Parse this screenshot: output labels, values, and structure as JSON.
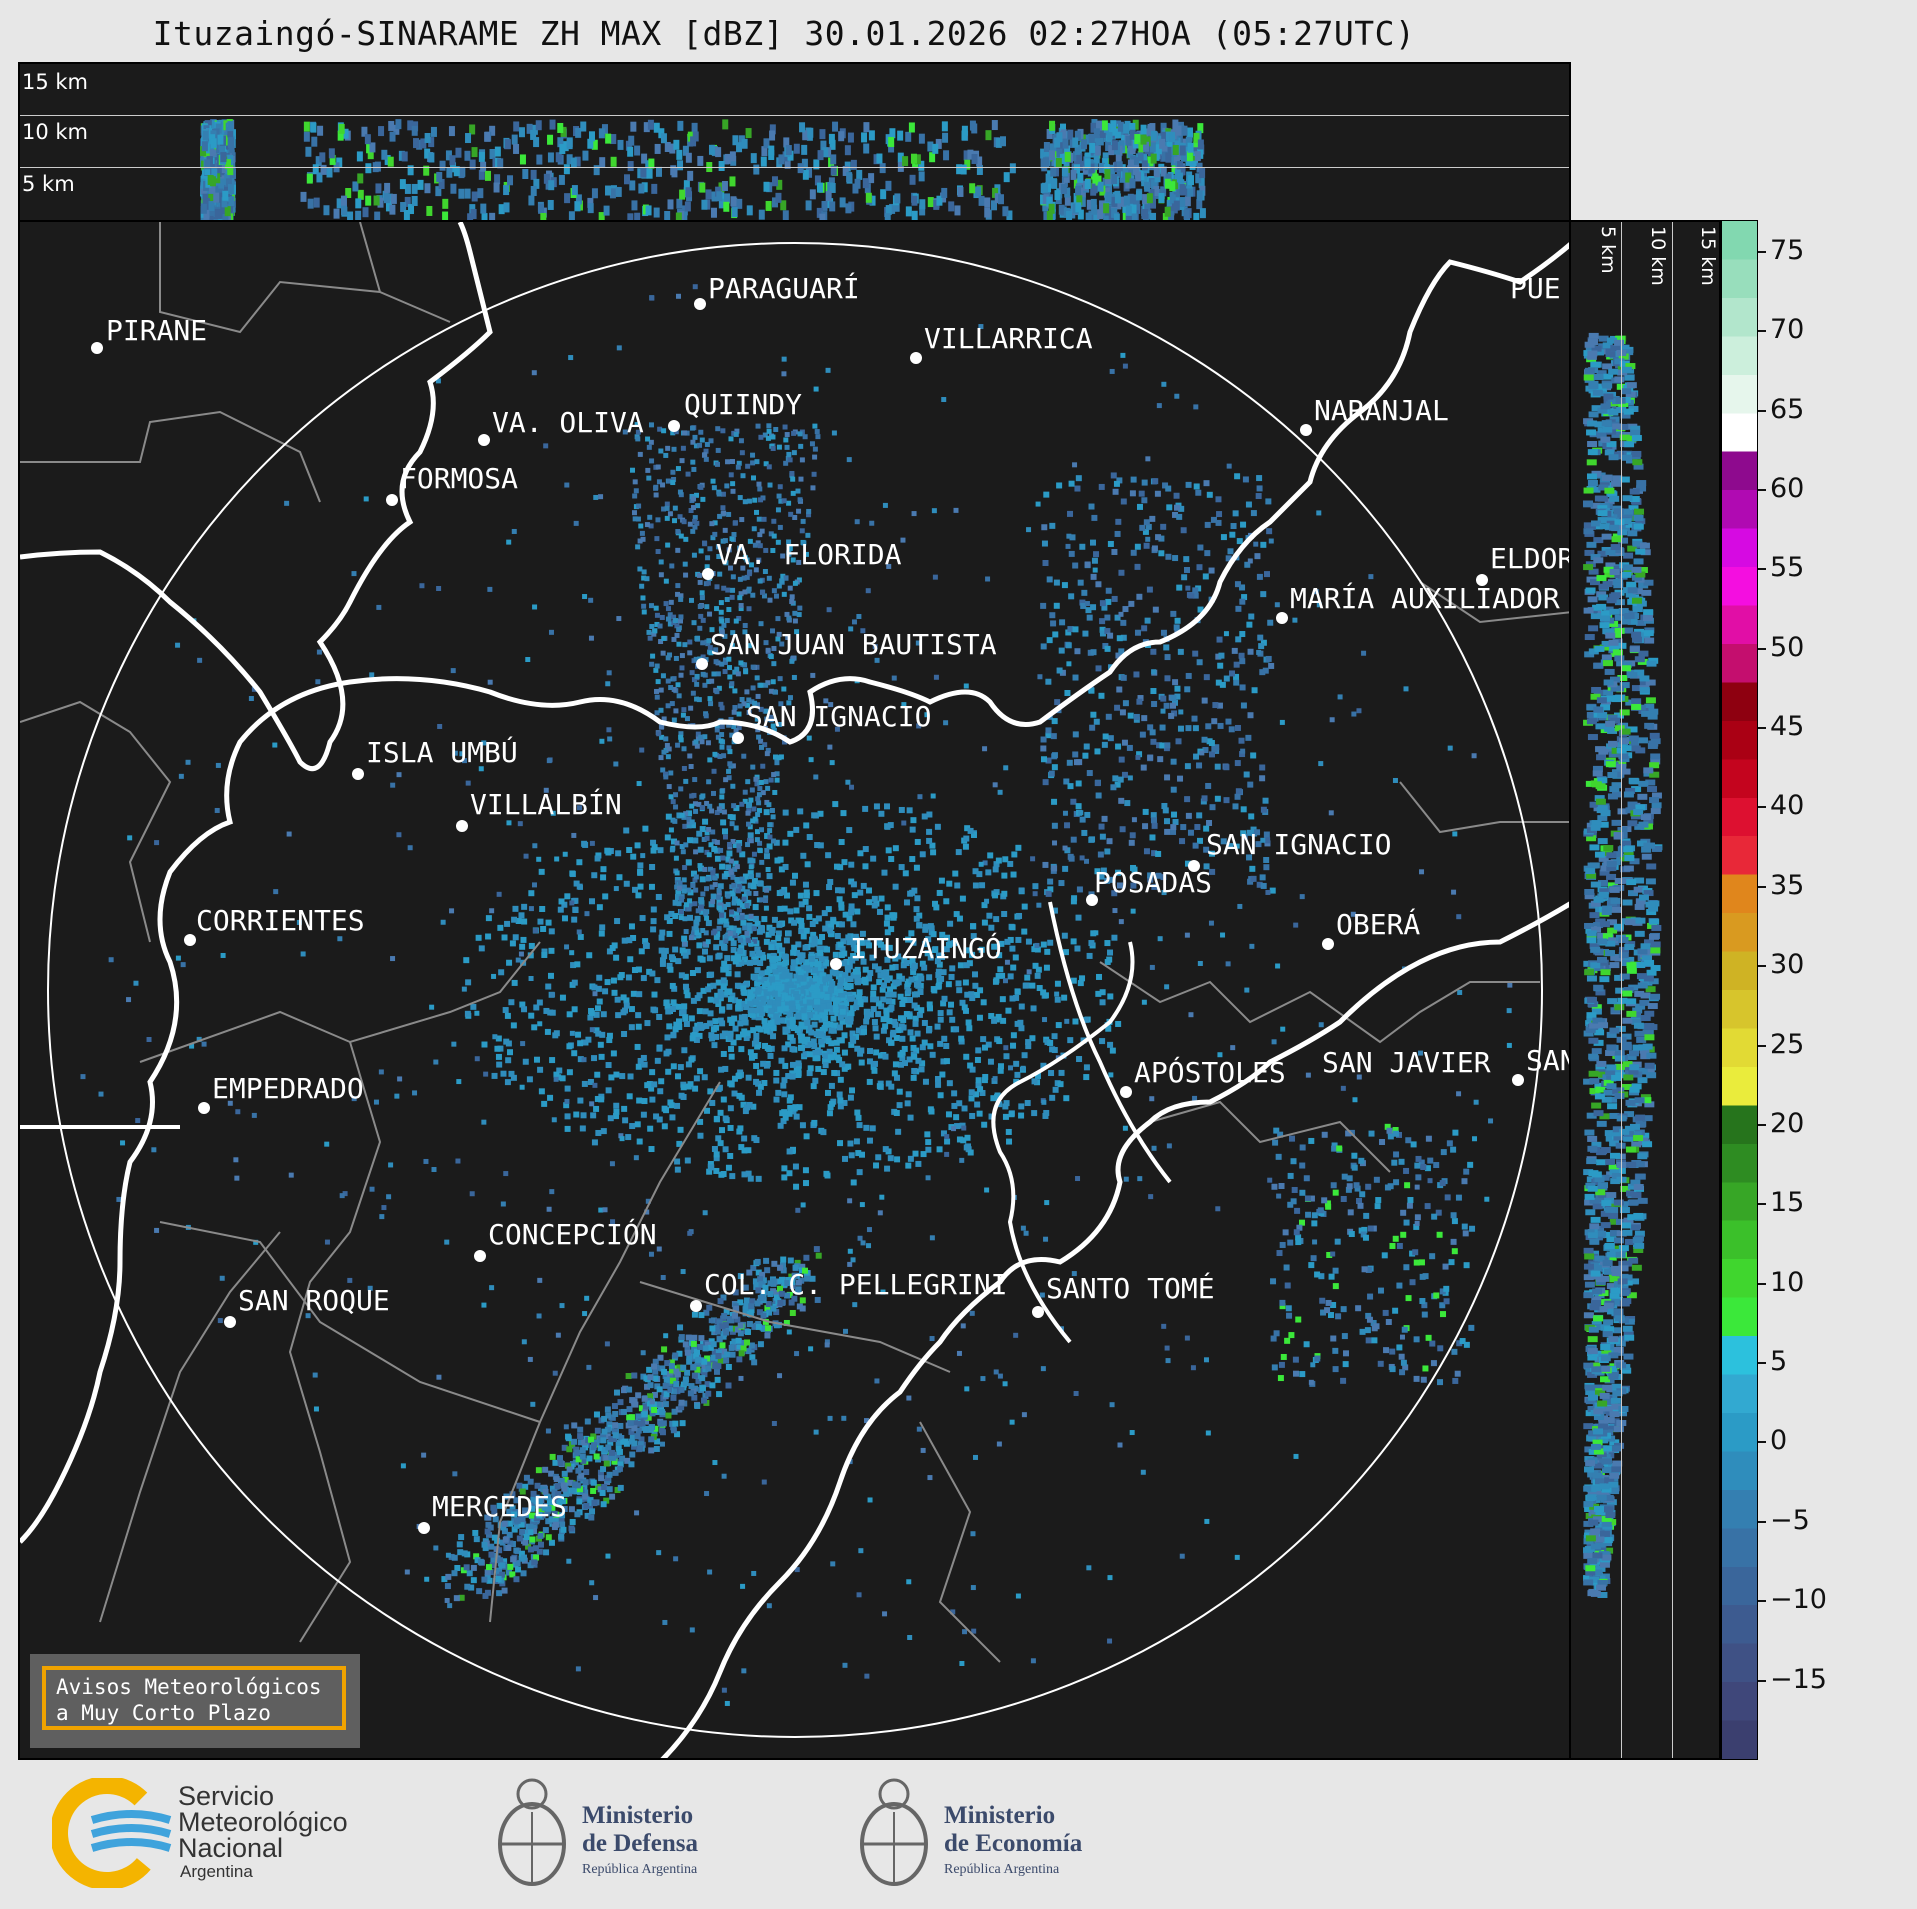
{
  "title": "Ituzaingó-SINARAME ZH MAX [dBZ] 30.01.2026 02:27HOA (05:27UTC)",
  "height_labels": [
    "15 km",
    "10 km",
    "5 km"
  ],
  "cities": [
    {
      "name": "PIRANE"
    },
    {
      "name": "PARAGUARÍ"
    },
    {
      "name": "VILLARRICA"
    },
    {
      "name": "QUIINDY"
    },
    {
      "name": "VA. OLIVA"
    },
    {
      "name": "FORMOSA"
    },
    {
      "name": "NARANJAL"
    },
    {
      "name": "VA. FLORIDA"
    },
    {
      "name": "ELDOR"
    },
    {
      "name": "MARÍA AUXILIADOR"
    },
    {
      "name": "SAN JUAN BAUTISTA"
    },
    {
      "name": "SAN IGNACIO"
    },
    {
      "name": "ISLA UMBÚ"
    },
    {
      "name": "VILLALBÍN"
    },
    {
      "name": "SAN IGNACIO"
    },
    {
      "name": "POSADAS"
    },
    {
      "name": "CORRIENTES"
    },
    {
      "name": "ITUZAINGÓ"
    },
    {
      "name": "OBERÁ"
    },
    {
      "name": "EMPEDRADO"
    },
    {
      "name": "APÓSTOLES"
    },
    {
      "name": "SAN JAVIER"
    },
    {
      "name": "SAN"
    },
    {
      "name": "CONCEPCIÓN"
    },
    {
      "name": "SAN ROQUE"
    },
    {
      "name": "COL. C. PELLEGRINI"
    },
    {
      "name": "SANTO TOMÉ"
    },
    {
      "name": "MERCEDES"
    },
    {
      "name": "PUE"
    }
  ],
  "colorbar": {
    "ticks": [
      "75",
      "70",
      "65",
      "60",
      "55",
      "50",
      "45",
      "40",
      "35",
      "30",
      "25",
      "20",
      "15",
      "10",
      "5",
      "0",
      "−5",
      "−10",
      "−15"
    ],
    "colors": [
      "#3b3f6f",
      "#3f477a",
      "#3f5185",
      "#3d5b90",
      "#3a669b",
      "#3872a6",
      "#347fb1",
      "#2f8dbc",
      "#2b9bc6",
      "#32a9d1",
      "#2cc1dd",
      "#3be83a",
      "#40d62e",
      "#3bc02a",
      "#37a626",
      "#2e8c22",
      "#26741c",
      "#eaec3c",
      "#e2da34",
      "#d7c52c",
      "#cfb324",
      "#d99a20",
      "#e0861c",
      "#e82838",
      "#dd1030",
      "#c4041e",
      "#aa0014",
      "#8e0010",
      "#c40e6e",
      "#e10ea6",
      "#f40ee0",
      "#d60ae2",
      "#b00ab2",
      "#8e0a8e",
      "#ffffff",
      "#e6f6ec",
      "#ccefdc",
      "#b2e6cc",
      "#98debc",
      "#82d8b0"
    ]
  },
  "aviso": {
    "line1": "Avisos Meteorológicos",
    "line2": "a Muy Corto Plazo"
  },
  "logos": {
    "smn": {
      "l1": "Servicio",
      "l2": "Meteorológico",
      "l3": "Nacional",
      "l4": "Argentina"
    },
    "defensa": {
      "l1": "Ministerio",
      "l2": "de Defensa",
      "l3": "República Argentina"
    },
    "economia": {
      "l1": "Ministerio",
      "l2": "de Economía",
      "l3": "República Argentina"
    }
  }
}
